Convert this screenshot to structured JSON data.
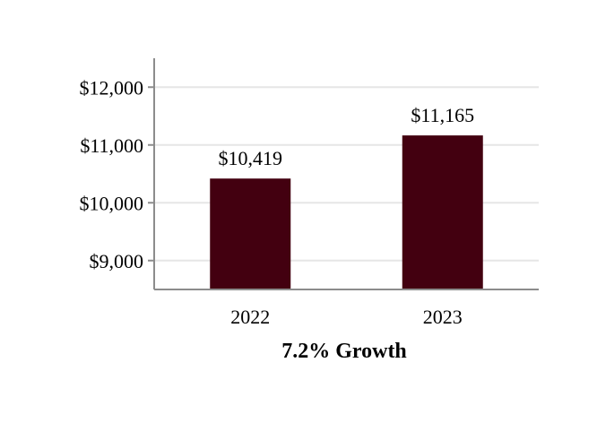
{
  "chart_data": {
    "type": "bar",
    "title": "",
    "xlabel": "7.2% Growth",
    "ylabel": "",
    "categories": [
      "2022",
      "2023"
    ],
    "values": [
      10419,
      11165
    ],
    "data_labels": [
      "$10,419",
      "$11,165"
    ],
    "ylim": [
      8500,
      12500
    ],
    "yticks": [
      9000,
      10000,
      11000,
      12000
    ],
    "ytick_labels": [
      "$9,000",
      "$10,000",
      "$11,000",
      "$12,000"
    ],
    "grid": true,
    "legend": "none"
  },
  "colors": {
    "bar": "#430010",
    "grid": "#e6e6e6",
    "axis": "#8c8c8c"
  }
}
